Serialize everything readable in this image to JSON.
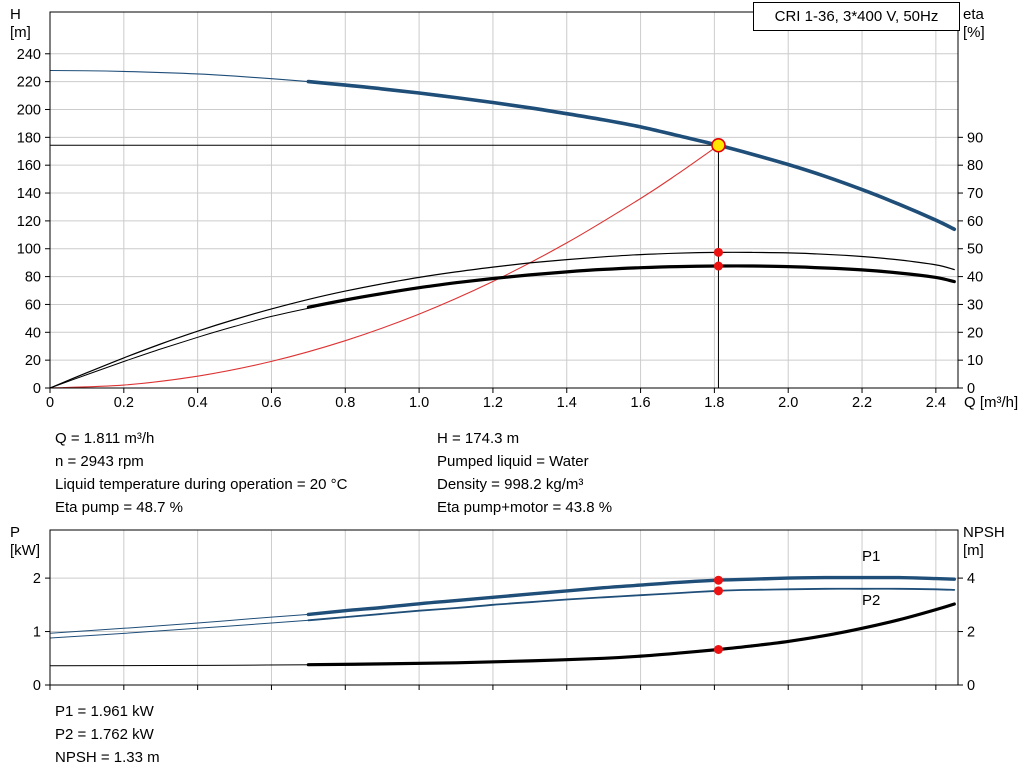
{
  "title_box": "CRI 1-36, 3*400 V, 50Hz",
  "colors": {
    "curve_blue": "#1f4e79",
    "system_red": "#dd3333",
    "dot_red": "#ee1111",
    "duty_fill": "#ffe600",
    "duty_stroke": "#e00000",
    "grid": "#cccccc",
    "axis": "#000000"
  },
  "info_top": {
    "left": [
      "Q = 1.811 m³/h",
      "n = 2943 rpm",
      "Liquid temperature during operation = 20 °C",
      "Eta pump = 48.7 %"
    ],
    "right": [
      "H = 174.3 m",
      "Pumped liquid = Water",
      "Density = 998.2 kg/m³",
      "Eta pump+motor = 43.8 %"
    ]
  },
  "info_bottom": [
    "P1 = 1.961 kW",
    "P2 = 1.762 kW",
    "NPSH = 1.33 m"
  ],
  "chart_data": [
    {
      "id": "qh",
      "type": "line",
      "title": "CRI 1-36, 3*400 V, 50Hz",
      "x": {
        "label": "Q [m³/h]",
        "min": 0,
        "max": 2.46,
        "ticks": [
          0,
          0.2,
          0.4,
          0.6,
          0.8,
          1.0,
          1.2,
          1.4,
          1.6,
          1.8,
          2.0,
          2.2,
          2.4
        ],
        "tick_labels": [
          "0",
          "0.2",
          "0.4",
          "0.6",
          "0.8",
          "1.0",
          "1.2",
          "1.4",
          "1.6",
          "1.8",
          "2.0",
          "2.2",
          "2.4"
        ]
      },
      "y_left": {
        "label_lines": [
          "H",
          "[m]"
        ],
        "min": 0,
        "max": 270,
        "ticks": [
          0,
          20,
          40,
          60,
          80,
          100,
          120,
          140,
          160,
          180,
          200,
          220,
          240
        ],
        "tick_labels": [
          "0",
          "20",
          "40",
          "60",
          "80",
          "100",
          "120",
          "140",
          "160",
          "180",
          "200",
          "220",
          "240"
        ]
      },
      "y_right": {
        "label_lines": [
          "eta",
          "[%]"
        ],
        "min": 0,
        "max": 135,
        "ticks": [
          0,
          10,
          20,
          30,
          40,
          50,
          60,
          70,
          80,
          90
        ],
        "tick_labels": [
          "0",
          "10",
          "20",
          "30",
          "40",
          "50",
          "60",
          "70",
          "80",
          "90"
        ]
      },
      "grid": true,
      "series": [
        {
          "name": "system-curve",
          "axis": "left",
          "color": "#dd3333",
          "width": 1.1,
          "points": [
            [
              0,
              0
            ],
            [
              0.2,
              2.1
            ],
            [
              0.4,
              8.5
            ],
            [
              0.6,
              19.1
            ],
            [
              0.8,
              34.0
            ],
            [
              1.0,
              53.1
            ],
            [
              1.2,
              76.5
            ],
            [
              1.4,
              104.2
            ],
            [
              1.6,
              136.1
            ],
            [
              1.7,
              153.6
            ],
            [
              1.811,
              174.3
            ]
          ]
        },
        {
          "name": "eta-pump-curve",
          "axis": "right",
          "color": "#000000",
          "width": 1.2,
          "points": [
            [
              0,
              0
            ],
            [
              0.1,
              5.5
            ],
            [
              0.2,
              10.8
            ],
            [
              0.3,
              15.8
            ],
            [
              0.4,
              20.4
            ],
            [
              0.5,
              24.6
            ],
            [
              0.6,
              28.4
            ],
            [
              0.7,
              31.8
            ],
            [
              0.8,
              34.8
            ],
            [
              0.9,
              37.4
            ],
            [
              1.0,
              39.7
            ],
            [
              1.1,
              41.7
            ],
            [
              1.2,
              43.4
            ],
            [
              1.3,
              44.9
            ],
            [
              1.4,
              46.1
            ],
            [
              1.5,
              47.1
            ],
            [
              1.6,
              47.9
            ],
            [
              1.7,
              48.4
            ],
            [
              1.811,
              48.7
            ],
            [
              1.9,
              48.7
            ],
            [
              2.0,
              48.5
            ],
            [
              2.1,
              48.0
            ],
            [
              2.2,
              47.2
            ],
            [
              2.3,
              46.0
            ],
            [
              2.4,
              44.2
            ],
            [
              2.45,
              42.5
            ]
          ]
        },
        {
          "name": "eta-pump-motor-extension",
          "axis": "right",
          "color": "#000000",
          "width": 1.0,
          "points": [
            [
              0,
              0
            ],
            [
              0.1,
              4.8
            ],
            [
              0.2,
              9.5
            ],
            [
              0.3,
              14.0
            ],
            [
              0.4,
              18.2
            ],
            [
              0.5,
              22.1
            ],
            [
              0.6,
              25.7
            ],
            [
              0.72,
              29.2
            ]
          ]
        },
        {
          "name": "eta-pump-motor-curve",
          "axis": "right",
          "color": "#000000",
          "width": 3.2,
          "points": [
            [
              0.7,
              29.0
            ],
            [
              0.8,
              31.6
            ],
            [
              0.9,
              33.9
            ],
            [
              1.0,
              36.0
            ],
            [
              1.1,
              37.8
            ],
            [
              1.2,
              39.3
            ],
            [
              1.3,
              40.6
            ],
            [
              1.4,
              41.7
            ],
            [
              1.5,
              42.6
            ],
            [
              1.6,
              43.2
            ],
            [
              1.7,
              43.6
            ],
            [
              1.811,
              43.8
            ],
            [
              1.9,
              43.8
            ],
            [
              2.0,
              43.6
            ],
            [
              2.1,
              43.1
            ],
            [
              2.2,
              42.4
            ],
            [
              2.3,
              41.3
            ],
            [
              2.4,
              39.7
            ],
            [
              2.45,
              38.2
            ]
          ]
        },
        {
          "name": "qh-curve-extension",
          "axis": "left",
          "color": "#1f4e79",
          "width": 1.1,
          "points": [
            [
              0,
              228
            ],
            [
              0.15,
              227.6
            ],
            [
              0.3,
              226.5
            ],
            [
              0.45,
              224.8
            ],
            [
              0.6,
              222.1
            ],
            [
              0.72,
              219.6
            ]
          ]
        },
        {
          "name": "qh-curve",
          "axis": "left",
          "color": "#1f4e79",
          "width": 3.6,
          "points": [
            [
              0.7,
              220
            ],
            [
              0.8,
              217.5
            ],
            [
              0.9,
              214.8
            ],
            [
              1.0,
              211.8
            ],
            [
              1.1,
              208.5
            ],
            [
              1.2,
              205.0
            ],
            [
              1.3,
              201.2
            ],
            [
              1.4,
              197.0
            ],
            [
              1.5,
              192.5
            ],
            [
              1.6,
              187.5
            ],
            [
              1.7,
              181.3
            ],
            [
              1.811,
              174.3
            ],
            [
              1.9,
              168.0
            ],
            [
              2.0,
              160.5
            ],
            [
              2.1,
              152.0
            ],
            [
              2.2,
              142.5
            ],
            [
              2.3,
              132.0
            ],
            [
              2.4,
              120.5
            ],
            [
              2.45,
              114.0
            ]
          ]
        }
      ],
      "duty": {
        "q": 1.811,
        "v": 174.3
      },
      "markers": [
        {
          "name": "eta-pump-dot",
          "q": 1.811,
          "v": 48.7,
          "axis": "right",
          "r": 4.5,
          "fill": "#ee1111"
        },
        {
          "name": "eta-pump-motor-dot",
          "q": 1.811,
          "v": 43.8,
          "axis": "right",
          "r": 4.5,
          "fill": "#ee1111"
        },
        {
          "name": "duty-point",
          "q": 1.811,
          "v": 174.3,
          "axis": "left",
          "r": 6.5,
          "fill": "#ffe600",
          "stroke": "#e00000"
        }
      ],
      "labels": []
    },
    {
      "id": "power",
      "type": "line",
      "x": {
        "label": null,
        "min": 0,
        "max": 2.46,
        "ticks": [
          0,
          0.2,
          0.4,
          0.6,
          0.8,
          1.0,
          1.2,
          1.4,
          1.6,
          1.8,
          2.0,
          2.2,
          2.4
        ],
        "tick_labels": null
      },
      "y_left": {
        "label_lines": [
          "P",
          "[kW]"
        ],
        "min": 0,
        "max": 2.9,
        "ticks": [
          0,
          1,
          2
        ],
        "tick_labels": [
          "0",
          "1",
          "2"
        ]
      },
      "y_right": {
        "label_lines": [
          "NPSH",
          "[m]"
        ],
        "min": 0,
        "max": 5.8,
        "ticks": [
          0,
          2,
          4
        ],
        "tick_labels": [
          "0",
          "2",
          "4"
        ]
      },
      "grid": true,
      "series": [
        {
          "name": "p1-curve-extension",
          "axis": "left",
          "color": "#1f4e79",
          "width": 1.0,
          "points": [
            [
              0,
              0.97
            ],
            [
              0.2,
              1.06
            ],
            [
              0.4,
              1.16
            ],
            [
              0.6,
              1.27
            ],
            [
              0.72,
              1.33
            ]
          ]
        },
        {
          "name": "p2-curve-extension",
          "axis": "left",
          "color": "#1f4e79",
          "width": 1.0,
          "points": [
            [
              0,
              0.88
            ],
            [
              0.2,
              0.965
            ],
            [
              0.4,
              1.06
            ],
            [
              0.6,
              1.16
            ],
            [
              0.72,
              1.22
            ]
          ]
        },
        {
          "name": "npsh-curve-extension",
          "axis": "right",
          "color": "#000000",
          "width": 1.0,
          "points": [
            [
              0,
              0.72
            ],
            [
              0.3,
              0.73
            ],
            [
              0.5,
              0.74
            ],
            [
              0.72,
              0.76
            ]
          ]
        },
        {
          "name": "p2-curve",
          "axis": "left",
          "color": "#1f4e79",
          "width": 1.8,
          "points": [
            [
              0.7,
              1.21
            ],
            [
              0.8,
              1.27
            ],
            [
              0.9,
              1.33
            ],
            [
              1.0,
              1.39
            ],
            [
              1.1,
              1.44
            ],
            [
              1.2,
              1.5
            ],
            [
              1.3,
              1.55
            ],
            [
              1.4,
              1.6
            ],
            [
              1.5,
              1.64
            ],
            [
              1.6,
              1.68
            ],
            [
              1.7,
              1.72
            ],
            [
              1.811,
              1.762
            ],
            [
              1.9,
              1.78
            ],
            [
              2.0,
              1.79
            ],
            [
              2.1,
              1.8
            ],
            [
              2.2,
              1.8
            ],
            [
              2.3,
              1.8
            ],
            [
              2.4,
              1.79
            ],
            [
              2.45,
              1.78
            ]
          ]
        },
        {
          "name": "p1-curve",
          "axis": "left",
          "color": "#1f4e79",
          "width": 3.4,
          "points": [
            [
              0.7,
              1.32
            ],
            [
              0.8,
              1.39
            ],
            [
              0.9,
              1.45
            ],
            [
              1.0,
              1.52
            ],
            [
              1.1,
              1.58
            ],
            [
              1.2,
              1.64
            ],
            [
              1.3,
              1.7
            ],
            [
              1.4,
              1.76
            ],
            [
              1.5,
              1.82
            ],
            [
              1.6,
              1.87
            ],
            [
              1.7,
              1.92
            ],
            [
              1.811,
              1.961
            ],
            [
              1.9,
              1.98
            ],
            [
              2.0,
              2.0
            ],
            [
              2.1,
              2.01
            ],
            [
              2.2,
              2.01
            ],
            [
              2.3,
              2.01
            ],
            [
              2.4,
              1.99
            ],
            [
              2.45,
              1.98
            ]
          ]
        },
        {
          "name": "npsh-curve",
          "axis": "right",
          "color": "#000000",
          "width": 3.2,
          "points": [
            [
              0.7,
              0.76
            ],
            [
              0.9,
              0.79
            ],
            [
              1.1,
              0.83
            ],
            [
              1.3,
              0.9
            ],
            [
              1.5,
              1.0
            ],
            [
              1.6,
              1.08
            ],
            [
              1.7,
              1.19
            ],
            [
              1.811,
              1.33
            ],
            [
              1.9,
              1.46
            ],
            [
              2.0,
              1.63
            ],
            [
              2.1,
              1.85
            ],
            [
              2.2,
              2.12
            ],
            [
              2.3,
              2.44
            ],
            [
              2.4,
              2.82
            ],
            [
              2.45,
              3.03
            ]
          ]
        }
      ],
      "duty": null,
      "markers": [
        {
          "name": "p1-dot",
          "q": 1.811,
          "v": 1.961,
          "axis": "left",
          "r": 4.5,
          "fill": "#ee1111"
        },
        {
          "name": "p2-dot",
          "q": 1.811,
          "v": 1.762,
          "axis": "left",
          "r": 4.5,
          "fill": "#ee1111"
        },
        {
          "name": "npsh-dot",
          "q": 1.811,
          "v": 1.33,
          "axis": "right",
          "r": 4.5,
          "fill": "#ee1111"
        }
      ],
      "labels": [
        {
          "text": "P1",
          "q": 2.2,
          "v": 2.32,
          "axis": "left",
          "color": "#1f4e79"
        },
        {
          "text": "P2",
          "q": 2.2,
          "v": 1.5,
          "axis": "left",
          "color": "#1f4e79"
        }
      ]
    }
  ]
}
